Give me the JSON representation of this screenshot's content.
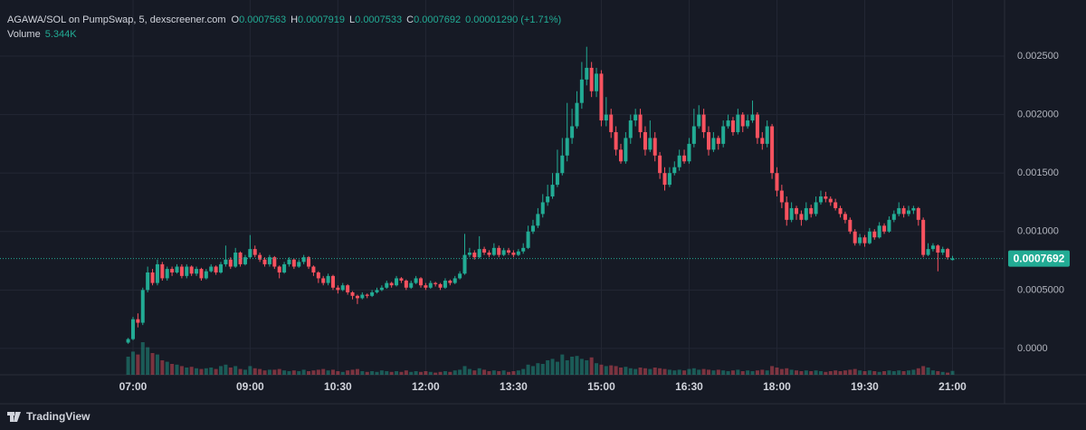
{
  "chart_data": {
    "type": "candlestick",
    "title": "AGAWA/SOL on PumpSwap, 5, dexscreener.com",
    "ohlc_labels": [
      "O",
      "H",
      "L",
      "C"
    ],
    "change_label": "0.00001290 (+1.71%)",
    "volume_label": "Volume",
    "volume_value_label": "5.344K",
    "up_color": "#22ab94",
    "down_color": "#f7525f",
    "grid": true,
    "last_price_line": true,
    "x": [
      "06:55",
      "07:00",
      "07:05",
      "07:10",
      "07:15",
      "07:20",
      "07:25",
      "07:30",
      "07:35",
      "07:40",
      "07:45",
      "07:50",
      "07:55",
      "08:00",
      "08:05",
      "08:10",
      "08:15",
      "08:20",
      "08:25",
      "08:30",
      "08:35",
      "08:40",
      "08:45",
      "08:50",
      "08:55",
      "09:00",
      "09:05",
      "09:10",
      "09:15",
      "09:20",
      "09:25",
      "09:30",
      "09:35",
      "09:40",
      "09:45",
      "09:50",
      "09:55",
      "10:00",
      "10:05",
      "10:10",
      "10:15",
      "10:20",
      "10:25",
      "10:30",
      "10:35",
      "10:40",
      "10:45",
      "10:50",
      "10:55",
      "11:00",
      "11:05",
      "11:10",
      "11:15",
      "11:20",
      "11:25",
      "11:30",
      "11:35",
      "11:40",
      "11:45",
      "11:50",
      "11:55",
      "12:00",
      "12:05",
      "12:10",
      "12:15",
      "12:20",
      "12:25",
      "12:30",
      "12:35",
      "12:40",
      "12:45",
      "12:50",
      "12:55",
      "13:00",
      "13:05",
      "13:10",
      "13:15",
      "13:20",
      "13:25",
      "13:30",
      "13:35",
      "13:40",
      "13:45",
      "13:50",
      "13:55",
      "14:00",
      "14:05",
      "14:10",
      "14:15",
      "14:20",
      "14:25",
      "14:30",
      "14:35",
      "14:40",
      "14:45",
      "14:50",
      "14:55",
      "15:00",
      "15:05",
      "15:10",
      "15:15",
      "15:20",
      "15:25",
      "15:30",
      "15:35",
      "15:40",
      "15:45",
      "15:50",
      "15:55",
      "16:00",
      "16:05",
      "16:10",
      "16:15",
      "16:20",
      "16:25",
      "16:30",
      "16:35",
      "16:40",
      "16:45",
      "16:50",
      "16:55",
      "17:00",
      "17:05",
      "17:10",
      "17:15",
      "17:20",
      "17:25",
      "17:30",
      "17:35",
      "17:40",
      "17:45",
      "17:50",
      "17:55",
      "18:00",
      "18:05",
      "18:10",
      "18:15",
      "18:20",
      "18:25",
      "18:30",
      "18:35",
      "18:40",
      "18:45",
      "18:50",
      "18:55",
      "19:00",
      "19:05",
      "19:10",
      "19:15",
      "19:20",
      "19:25",
      "19:30",
      "19:35",
      "19:40",
      "19:45",
      "19:50",
      "19:55",
      "20:00",
      "20:05",
      "20:10",
      "20:15",
      "20:20",
      "20:25",
      "20:30",
      "20:35",
      "20:40",
      "20:45",
      "20:50",
      "20:55",
      "21:00"
    ],
    "open": [
      5e-05,
      8e-05,
      0.00025,
      0.00022,
      0.0005,
      0.00065,
      0.00056,
      0.00072,
      0.0006,
      0.00068,
      0.00065,
      0.0007,
      0.00062,
      0.0007,
      0.00064,
      0.00068,
      0.0006,
      0.00066,
      0.0007,
      0.00065,
      0.00072,
      0.00076,
      0.0007,
      0.00082,
      0.00072,
      0.00078,
      0.00085,
      0.0008,
      0.00076,
      0.00072,
      0.00078,
      0.0007,
      0.00065,
      0.00072,
      0.00076,
      0.0007,
      0.00074,
      0.00078,
      0.0007,
      0.00065,
      0.0006,
      0.00056,
      0.00062,
      0.00052,
      0.0005,
      0.00054,
      0.00048,
      0.00045,
      0.00043,
      0.00046,
      0.00045,
      0.00048,
      0.0005,
      0.00052,
      0.00056,
      0.00054,
      0.0006,
      0.00058,
      0.00052,
      0.00056,
      0.0006,
      0.00054,
      0.00052,
      0.00056,
      0.00055,
      0.00052,
      0.00058,
      0.00056,
      0.0006,
      0.00064,
      0.0008,
      0.00082,
      0.00078,
      0.00085,
      0.00082,
      0.0008,
      0.00086,
      0.0008,
      0.00084,
      0.00082,
      0.0008,
      0.00083,
      0.00086,
      0.001,
      0.00105,
      0.00115,
      0.00125,
      0.0013,
      0.0014,
      0.0015,
      0.00165,
      0.0018,
      0.0019,
      0.0021,
      0.0023,
      0.0024,
      0.0022,
      0.00235,
      0.00195,
      0.002,
      0.00185,
      0.0017,
      0.0016,
      0.0018,
      0.00195,
      0.002,
      0.00185,
      0.0017,
      0.0018,
      0.00165,
      0.0015,
      0.0014,
      0.0015,
      0.00155,
      0.00165,
      0.0016,
      0.00175,
      0.0019,
      0.002,
      0.00185,
      0.0017,
      0.0018,
      0.00175,
      0.0019,
      0.00195,
      0.00185,
      0.002,
      0.0019,
      0.00195,
      0.002,
      0.0018,
      0.00175,
      0.0019,
      0.0015,
      0.00135,
      0.00125,
      0.0011,
      0.0012,
      0.00115,
      0.0011,
      0.0012,
      0.00115,
      0.00125,
      0.0013,
      0.00128,
      0.00125,
      0.0012,
      0.00115,
      0.0011,
      0.001,
      0.0009,
      0.00095,
      0.0009,
      0.001,
      0.00095,
      0.00105,
      0.001,
      0.0011,
      0.00115,
      0.0012,
      0.00115,
      0.00118,
      0.0012,
      0.0011,
      0.0008,
      0.00085,
      0.00088,
      0.00082,
      0.00085,
      0.0007563
    ],
    "high": [
      9e-05,
      0.00027,
      0.0003,
      0.00052,
      0.0007,
      0.00068,
      0.00076,
      0.00074,
      0.0007,
      0.0007,
      0.00072,
      0.00072,
      0.00072,
      0.00071,
      0.0007,
      0.00069,
      0.00068,
      0.00072,
      0.00071,
      0.00074,
      0.00088,
      0.00078,
      0.00086,
      0.00083,
      0.0008,
      0.00097,
      0.00088,
      0.00082,
      0.00078,
      0.0008,
      0.00079,
      0.00071,
      0.00074,
      0.00078,
      0.00077,
      0.00076,
      0.0008,
      0.00079,
      0.00071,
      0.00066,
      0.00062,
      0.00064,
      0.00063,
      0.00054,
      0.00056,
      0.00055,
      0.00049,
      0.00046,
      0.00048,
      0.00047,
      0.0005,
      0.00052,
      0.00054,
      0.00058,
      0.00057,
      0.00062,
      0.00061,
      0.00059,
      0.00058,
      0.00062,
      0.00061,
      0.00056,
      0.00058,
      0.00057,
      0.00056,
      0.0006,
      0.00059,
      0.00062,
      0.00066,
      0.00098,
      0.00086,
      0.00084,
      0.00096,
      0.00087,
      0.00084,
      0.0009,
      0.00088,
      0.00086,
      0.00086,
      0.00084,
      0.00085,
      0.0009,
      0.00105,
      0.0011,
      0.0012,
      0.00132,
      0.0014,
      0.0015,
      0.0017,
      0.0018,
      0.0021,
      0.00205,
      0.0022,
      0.00245,
      0.00258,
      0.00245,
      0.0024,
      0.00238,
      0.00215,
      0.00205,
      0.0019,
      0.00175,
      0.00185,
      0.002,
      0.00205,
      0.00205,
      0.0019,
      0.00195,
      0.00185,
      0.00168,
      0.00155,
      0.00155,
      0.0016,
      0.0017,
      0.0017,
      0.0018,
      0.00205,
      0.00208,
      0.00205,
      0.0019,
      0.00185,
      0.00182,
      0.00195,
      0.002,
      0.00198,
      0.00205,
      0.00202,
      0.002,
      0.00212,
      0.00202,
      0.00185,
      0.00195,
      0.00192,
      0.00155,
      0.0014,
      0.0013,
      0.00125,
      0.00122,
      0.00118,
      0.00125,
      0.00123,
      0.0013,
      0.00135,
      0.00134,
      0.0013,
      0.00128,
      0.00122,
      0.00117,
      0.00112,
      0.00102,
      0.00098,
      0.00097,
      0.00103,
      0.00102,
      0.00108,
      0.00107,
      0.00113,
      0.00118,
      0.00125,
      0.00122,
      0.00122,
      0.00122,
      0.00121,
      0.00112,
      0.0009,
      0.0009,
      0.00089,
      0.00087,
      0.00086,
      0.0007919
    ],
    "low": [
      4e-05,
      7e-05,
      0.00018,
      0.0002,
      0.00048,
      0.00054,
      0.00054,
      0.00058,
      0.00058,
      0.00062,
      0.00064,
      0.0006,
      0.0006,
      0.00062,
      0.00062,
      0.00058,
      0.00059,
      0.00065,
      0.00063,
      0.00064,
      0.0007,
      0.00068,
      0.00069,
      0.0007,
      0.00071,
      0.00077,
      0.00078,
      0.00074,
      0.0007,
      0.0007,
      0.00068,
      0.0006,
      0.00064,
      0.0007,
      0.00068,
      0.00069,
      0.00072,
      0.00068,
      0.00062,
      0.00056,
      0.00054,
      0.00054,
      0.0005,
      0.00047,
      0.00049,
      0.00046,
      0.00042,
      0.00038,
      0.00042,
      0.00043,
      0.00044,
      0.00047,
      0.00049,
      0.00051,
      0.00052,
      0.00053,
      0.00056,
      0.0005,
      0.00051,
      0.00055,
      0.00052,
      0.0005,
      0.00051,
      0.00053,
      0.0005,
      0.00051,
      0.00054,
      0.00055,
      0.00059,
      0.00063,
      0.00078,
      0.00076,
      0.00077,
      0.0008,
      0.00078,
      0.00079,
      0.00078,
      0.00079,
      0.0008,
      0.00078,
      0.00079,
      0.00081,
      0.00085,
      0.00098,
      0.00103,
      0.00112,
      0.00122,
      0.00128,
      0.00138,
      0.00148,
      0.0016,
      0.00175,
      0.00188,
      0.00205,
      0.00225,
      0.00215,
      0.00215,
      0.0019,
      0.0019,
      0.0018,
      0.00165,
      0.00158,
      0.00158,
      0.00175,
      0.0019,
      0.0018,
      0.00165,
      0.00168,
      0.0016,
      0.00145,
      0.00135,
      0.00138,
      0.00148,
      0.00152,
      0.00158,
      0.00158,
      0.00172,
      0.00188,
      0.0018,
      0.00165,
      0.00168,
      0.0017,
      0.00172,
      0.00188,
      0.00182,
      0.00183,
      0.00185,
      0.00188,
      0.00193,
      0.00175,
      0.0017,
      0.00172,
      0.00145,
      0.0013,
      0.0012,
      0.00105,
      0.00108,
      0.0011,
      0.00105,
      0.00109,
      0.00112,
      0.00113,
      0.00123,
      0.00125,
      0.00122,
      0.00118,
      0.00112,
      0.00107,
      0.00098,
      0.00088,
      0.00088,
      0.00087,
      0.00089,
      0.00093,
      0.00094,
      0.00098,
      0.00099,
      0.00108,
      0.00113,
      0.00112,
      0.00113,
      0.00115,
      0.00105,
      0.00078,
      0.00079,
      0.00083,
      0.00066,
      0.0008,
      0.00076,
      0.0007533
    ],
    "close": [
      8e-05,
      0.00025,
      0.00022,
      0.0005,
      0.00065,
      0.00056,
      0.00072,
      0.0006,
      0.00068,
      0.00065,
      0.0007,
      0.00062,
      0.0007,
      0.00064,
      0.00068,
      0.0006,
      0.00066,
      0.0007,
      0.00065,
      0.00072,
      0.00076,
      0.0007,
      0.00082,
      0.00072,
      0.00078,
      0.00085,
      0.0008,
      0.00076,
      0.00072,
      0.00078,
      0.0007,
      0.00065,
      0.00072,
      0.00076,
      0.0007,
      0.00074,
      0.00078,
      0.0007,
      0.00065,
      0.0006,
      0.00056,
      0.00062,
      0.00052,
      0.0005,
      0.00054,
      0.00048,
      0.00045,
      0.00043,
      0.00046,
      0.00045,
      0.00048,
      0.0005,
      0.00052,
      0.00056,
      0.00054,
      0.0006,
      0.00058,
      0.00052,
      0.00056,
      0.0006,
      0.00054,
      0.00052,
      0.00056,
      0.00055,
      0.00052,
      0.00058,
      0.00056,
      0.0006,
      0.00064,
      0.0008,
      0.00082,
      0.00078,
      0.00085,
      0.00082,
      0.0008,
      0.00086,
      0.0008,
      0.00084,
      0.00082,
      0.0008,
      0.00083,
      0.00086,
      0.001,
      0.00105,
      0.00115,
      0.00125,
      0.0013,
      0.0014,
      0.0015,
      0.00165,
      0.0018,
      0.0019,
      0.0021,
      0.0023,
      0.0024,
      0.0022,
      0.00235,
      0.00195,
      0.002,
      0.00185,
      0.0017,
      0.0016,
      0.0018,
      0.00195,
      0.002,
      0.00185,
      0.0017,
      0.0018,
      0.00165,
      0.0015,
      0.0014,
      0.0015,
      0.00155,
      0.00165,
      0.0016,
      0.00175,
      0.0019,
      0.002,
      0.00185,
      0.0017,
      0.0018,
      0.00175,
      0.0019,
      0.00195,
      0.00185,
      0.002,
      0.0019,
      0.00195,
      0.002,
      0.0018,
      0.00175,
      0.0019,
      0.0015,
      0.00135,
      0.00125,
      0.0011,
      0.0012,
      0.00115,
      0.0011,
      0.0012,
      0.00115,
      0.00125,
      0.0013,
      0.00128,
      0.00125,
      0.0012,
      0.00115,
      0.0011,
      0.001,
      0.0009,
      0.00095,
      0.0009,
      0.001,
      0.00095,
      0.00105,
      0.001,
      0.0011,
      0.00115,
      0.0012,
      0.00115,
      0.00118,
      0.0012,
      0.0011,
      0.0008,
      0.00085,
      0.00088,
      0.00082,
      0.00085,
      0.00078,
      0.0007692
    ],
    "volume": [
      25000,
      32000,
      28000,
      45000,
      38000,
      30000,
      28000,
      20000,
      18000,
      15000,
      14000,
      12000,
      10000,
      11000,
      9000,
      8000,
      9000,
      10000,
      8000,
      12000,
      14000,
      10000,
      12000,
      8000,
      7000,
      12000,
      9000,
      8000,
      6000,
      7000,
      7000,
      8000,
      6000,
      5000,
      6000,
      5000,
      7000,
      5000,
      6000,
      7000,
      8000,
      6000,
      7000,
      5000,
      4000,
      6000,
      7000,
      8000,
      5000,
      4000,
      5000,
      4000,
      6000,
      5000,
      4000,
      5000,
      4000,
      6000,
      4000,
      5000,
      4000,
      5000,
      4000,
      3000,
      4000,
      5000,
      4000,
      6000,
      7000,
      12000,
      8000,
      6000,
      9000,
      7000,
      5000,
      6000,
      5000,
      6000,
      4000,
      5000,
      6000,
      8000,
      14000,
      12000,
      16000,
      15000,
      20000,
      22000,
      18000,
      28000,
      20000,
      25000,
      26000,
      22000,
      20000,
      24000,
      16000,
      14000,
      12000,
      13000,
      12000,
      10000,
      11000,
      9000,
      8000,
      10000,
      9000,
      8000,
      10000,
      9000,
      8000,
      7000,
      6000,
      7000,
      6000,
      8000,
      9000,
      7000,
      8000,
      7000,
      6000,
      7000,
      6000,
      5000,
      6000,
      7000,
      5000,
      6000,
      5000,
      6000,
      7000,
      6000,
      12000,
      10000,
      8000,
      9000,
      7000,
      6000,
      5000,
      6000,
      5000,
      6000,
      5000,
      4000,
      5000,
      6000,
      5000,
      6000,
      7000,
      8000,
      6000,
      5000,
      6000,
      5000,
      4000,
      5000,
      6000,
      5000,
      6000,
      5000,
      6000,
      7000,
      9000,
      12000,
      10000,
      6000,
      5000,
      4000,
      3000,
      5344
    ],
    "ylim": [
      -0.000225,
      0.00298
    ],
    "yticks": [
      {
        "value": 0,
        "label": "0.0000"
      },
      {
        "value": 0.0005,
        "label": "0.0005000"
      },
      {
        "value": 0.001,
        "label": "0.001000"
      },
      {
        "value": 0.0015,
        "label": "0.001500"
      },
      {
        "value": 0.002,
        "label": "0.002000"
      },
      {
        "value": 0.0025,
        "label": "0.002500"
      }
    ],
    "xticks": [
      "07:00",
      "09:00",
      "10:30",
      "12:00",
      "13:30",
      "15:00",
      "16:30",
      "18:00",
      "19:30",
      "21:00"
    ]
  },
  "footer": {
    "brand": "TradingView"
  }
}
